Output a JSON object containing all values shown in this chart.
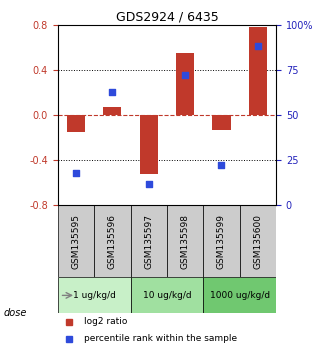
{
  "title": "GDS2924 / 6435",
  "samples": [
    "GSM135595",
    "GSM135596",
    "GSM135597",
    "GSM135598",
    "GSM135599",
    "GSM135600"
  ],
  "log2_ratio": [
    -0.15,
    0.07,
    -0.52,
    0.55,
    -0.13,
    0.78
  ],
  "percentile_rank": [
    18,
    63,
    12,
    72,
    22,
    88
  ],
  "ylim_left": [
    -0.8,
    0.8
  ],
  "ylim_right": [
    0,
    100
  ],
  "left_ticks": [
    -0.8,
    -0.4,
    0.0,
    0.4,
    0.8
  ],
  "right_ticks": [
    0,
    25,
    50,
    75,
    100
  ],
  "right_tick_labels": [
    "0",
    "25",
    "50",
    "75",
    "100%"
  ],
  "hlines_dotted": [
    0.4,
    -0.4
  ],
  "hline_dashed": 0.0,
  "bar_color": "#c0392b",
  "square_color": "#2e4adb",
  "dose_groups": [
    {
      "label": "1 ug/kg/d",
      "samples": [
        0,
        1
      ],
      "color": "#c8f0c8"
    },
    {
      "label": "10 ug/kg/d",
      "samples": [
        2,
        3
      ],
      "color": "#a0e0a0"
    },
    {
      "label": "1000 ug/kg/d",
      "samples": [
        4,
        5
      ],
      "color": "#70c870"
    }
  ],
  "dose_label": "dose",
  "legend_bar_label": "log2 ratio",
  "legend_square_label": "percentile rank within the sample",
  "bar_width": 0.5,
  "sample_box_color": "#cccccc",
  "background_color": "#ffffff"
}
